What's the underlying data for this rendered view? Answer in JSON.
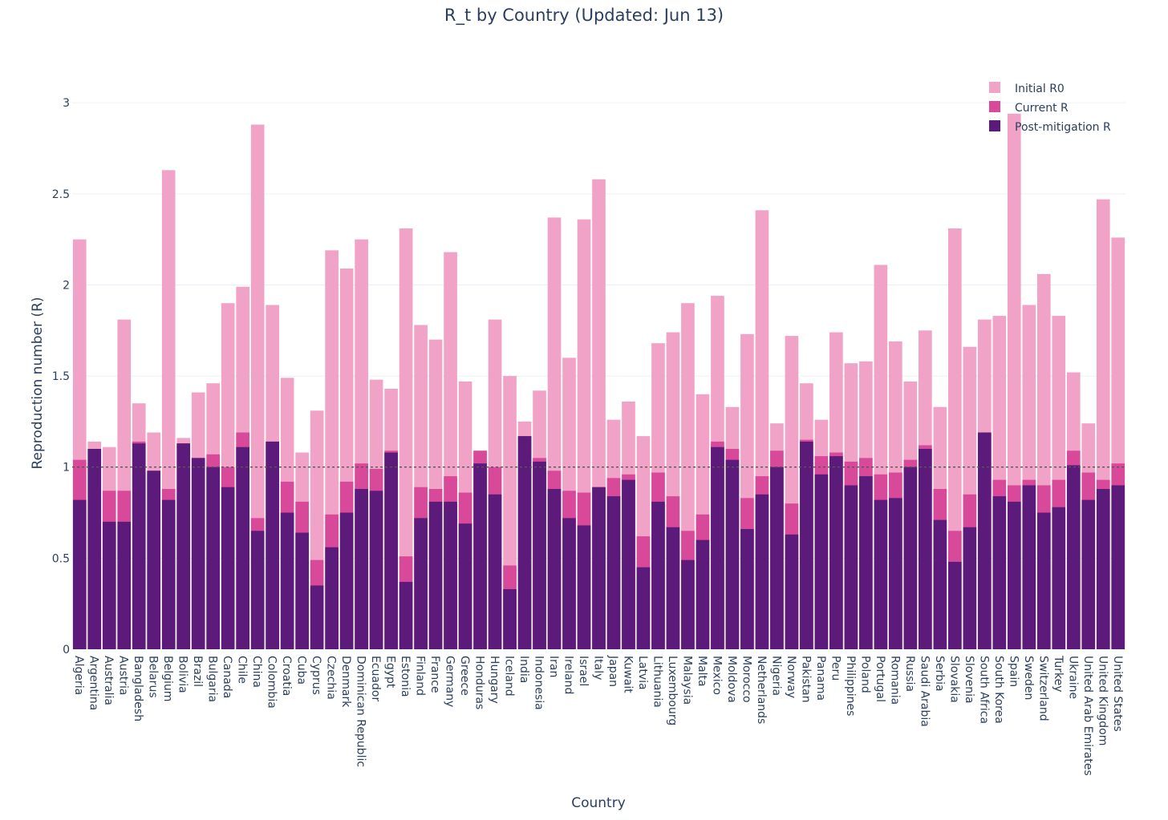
{
  "chart_data": {
    "type": "bar",
    "barmode": "overlay",
    "title": "R_t by Country (Updated: Jun 13)",
    "xlabel": "Country",
    "ylabel": "Reproduction number (R)",
    "ylim": [
      0,
      3.3
    ],
    "y_ticks": [
      0,
      0.5,
      1,
      1.5,
      2,
      2.5,
      3
    ],
    "y_tick_labels": [
      "0",
      "0.5",
      "1",
      "1.5",
      "2",
      "2.5",
      "3"
    ],
    "grid": true,
    "legend_position": "top-right",
    "reference_line": 1,
    "categories": [
      "Algeria",
      "Argentina",
      "Australia",
      "Austria",
      "Bangladesh",
      "Belarus",
      "Belgium",
      "Bolivia",
      "Brazil",
      "Bulgaria",
      "Canada",
      "Chile",
      "China",
      "Colombia",
      "Croatia",
      "Cuba",
      "Cyprus",
      "Czechia",
      "Denmark",
      "Dominican Republic",
      "Ecuador",
      "Egypt",
      "Estonia",
      "Finland",
      "France",
      "Germany",
      "Greece",
      "Honduras",
      "Hungary",
      "Iceland",
      "India",
      "Indonesia",
      "Iran",
      "Ireland",
      "Israel",
      "Italy",
      "Japan",
      "Kuwait",
      "Latvia",
      "Lithuania",
      "Luxembourg",
      "Malaysia",
      "Malta",
      "Mexico",
      "Moldova",
      "Morocco",
      "Netherlands",
      "Nigeria",
      "Norway",
      "Pakistan",
      "Panama",
      "Peru",
      "Philippines",
      "Poland",
      "Portugal",
      "Romania",
      "Russia",
      "Saudi Arabia",
      "Serbia",
      "Slovakia",
      "Slovenia",
      "South Africa",
      "South Korea",
      "Spain",
      "Sweden",
      "Switzerland",
      "Turkey",
      "Ukraine",
      "United Arab Emirates",
      "United Kingdom",
      "United States"
    ],
    "series": [
      {
        "name": "Initial R0",
        "color": "#f0a3c7",
        "values": [
          2.25,
          1.14,
          1.11,
          1.81,
          1.35,
          1.19,
          2.63,
          1.16,
          1.41,
          1.46,
          1.9,
          1.99,
          2.88,
          1.89,
          1.49,
          1.08,
          1.31,
          2.19,
          2.09,
          2.25,
          1.48,
          1.43,
          2.31,
          1.78,
          1.7,
          2.18,
          1.47,
          1.09,
          1.81,
          1.5,
          1.25,
          1.42,
          2.37,
          1.6,
          2.36,
          2.58,
          1.26,
          1.36,
          1.17,
          1.68,
          1.74,
          1.9,
          1.4,
          1.94,
          1.33,
          1.73,
          2.41,
          1.24,
          1.72,
          1.46,
          1.26,
          1.74,
          1.57,
          1.58,
          2.11,
          1.69,
          1.47,
          1.75,
          1.33,
          2.31,
          1.66,
          1.81,
          1.83,
          2.94,
          1.89,
          2.06,
          1.83,
          1.52,
          1.24,
          2.47,
          2.26
        ]
      },
      {
        "name": "Current R",
        "color": "#d9499a",
        "values": [
          1.04,
          1.1,
          0.87,
          0.87,
          1.14,
          0.98,
          0.88,
          1.13,
          1.05,
          1.07,
          1.0,
          1.19,
          0.72,
          1.14,
          0.92,
          0.81,
          0.49,
          0.74,
          0.92,
          1.02,
          0.99,
          1.09,
          0.51,
          0.89,
          0.88,
          0.95,
          0.86,
          1.09,
          1.0,
          0.46,
          1.17,
          1.05,
          0.98,
          0.87,
          0.86,
          0.89,
          0.94,
          0.96,
          0.62,
          0.97,
          0.84,
          0.65,
          0.74,
          1.14,
          1.1,
          0.83,
          0.95,
          1.09,
          0.8,
          1.15,
          1.06,
          1.08,
          1.03,
          1.05,
          0.96,
          0.97,
          1.04,
          1.12,
          0.88,
          0.65,
          0.85,
          1.19,
          0.93,
          0.9,
          0.93,
          0.9,
          0.93,
          1.09,
          0.97,
          0.93,
          1.02
        ]
      },
      {
        "name": "Post-mitigation R",
        "color": "#5c1a7a",
        "values": [
          0.82,
          1.1,
          0.7,
          0.7,
          1.13,
          0.98,
          0.82,
          1.13,
          1.05,
          1.0,
          0.89,
          1.11,
          0.65,
          1.14,
          0.75,
          0.64,
          0.35,
          0.56,
          0.75,
          0.88,
          0.87,
          1.08,
          0.37,
          0.72,
          0.81,
          0.81,
          0.69,
          1.02,
          0.85,
          0.33,
          1.17,
          1.03,
          0.88,
          0.72,
          0.68,
          0.89,
          0.84,
          0.93,
          0.45,
          0.81,
          0.67,
          0.49,
          0.6,
          1.11,
          1.04,
          0.66,
          0.85,
          1.0,
          0.63,
          1.14,
          0.96,
          1.06,
          0.9,
          0.95,
          0.82,
          0.83,
          1.0,
          1.1,
          0.71,
          0.48,
          0.67,
          1.19,
          0.84,
          0.81,
          0.9,
          0.75,
          0.78,
          1.01,
          0.82,
          0.88,
          0.9
        ]
      }
    ],
    "post_mitigation_outline_color": "#5e3c99"
  }
}
